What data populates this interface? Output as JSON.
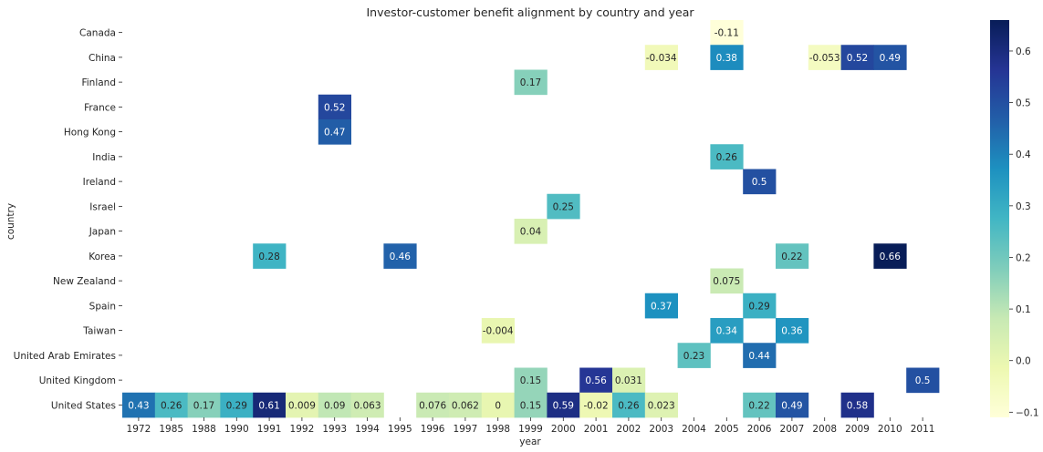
{
  "chart_data": {
    "type": "heatmap",
    "title": "Investor-customer benefit alignment by country and year",
    "xlabel": "year",
    "ylabel": "country",
    "x_categories": [
      "1972",
      "1985",
      "1988",
      "1990",
      "1991",
      "1992",
      "1993",
      "1994",
      "1995",
      "1996",
      "1997",
      "1998",
      "1999",
      "2000",
      "2001",
      "2002",
      "2003",
      "2004",
      "2005",
      "2006",
      "2007",
      "2008",
      "2009",
      "2010",
      "2011"
    ],
    "y_categories": [
      "Canada",
      "China",
      "Finland",
      "France",
      "Hong Kong",
      "India",
      "Ireland",
      "Israel",
      "Japan",
      "Korea",
      "New Zealand",
      "Spain",
      "Taiwan",
      "United Arab Emirates",
      "United Kingdom",
      "United States"
    ],
    "cells": [
      {
        "country": "Canada",
        "year": "2005",
        "value": -0.11,
        "label": "-0.11"
      },
      {
        "country": "China",
        "year": "2003",
        "value": -0.034,
        "label": "-0.034"
      },
      {
        "country": "China",
        "year": "2005",
        "value": 0.38,
        "label": "0.38"
      },
      {
        "country": "China",
        "year": "2008",
        "value": -0.053,
        "label": "-0.053"
      },
      {
        "country": "China",
        "year": "2009",
        "value": 0.52,
        "label": "0.52"
      },
      {
        "country": "China",
        "year": "2010",
        "value": 0.49,
        "label": "0.49"
      },
      {
        "country": "Finland",
        "year": "1999",
        "value": 0.17,
        "label": "0.17"
      },
      {
        "country": "France",
        "year": "1993",
        "value": 0.52,
        "label": "0.52"
      },
      {
        "country": "Hong Kong",
        "year": "1993",
        "value": 0.47,
        "label": "0.47"
      },
      {
        "country": "India",
        "year": "2005",
        "value": 0.26,
        "label": "0.26"
      },
      {
        "country": "Ireland",
        "year": "2006",
        "value": 0.5,
        "label": "0.5"
      },
      {
        "country": "Israel",
        "year": "2000",
        "value": 0.25,
        "label": "0.25"
      },
      {
        "country": "Japan",
        "year": "1999",
        "value": 0.04,
        "label": "0.04"
      },
      {
        "country": "Korea",
        "year": "1991",
        "value": 0.28,
        "label": "0.28"
      },
      {
        "country": "Korea",
        "year": "1995",
        "value": 0.46,
        "label": "0.46"
      },
      {
        "country": "Korea",
        "year": "2007",
        "value": 0.22,
        "label": "0.22"
      },
      {
        "country": "Korea",
        "year": "2010",
        "value": 0.66,
        "label": "0.66"
      },
      {
        "country": "New Zealand",
        "year": "2005",
        "value": 0.075,
        "label": "0.075"
      },
      {
        "country": "Spain",
        "year": "2003",
        "value": 0.37,
        "label": "0.37"
      },
      {
        "country": "Spain",
        "year": "2006",
        "value": 0.29,
        "label": "0.29"
      },
      {
        "country": "Taiwan",
        "year": "1998",
        "value": -0.004,
        "label": "-0.004"
      },
      {
        "country": "Taiwan",
        "year": "2005",
        "value": 0.34,
        "label": "0.34"
      },
      {
        "country": "Taiwan",
        "year": "2007",
        "value": 0.36,
        "label": "0.36"
      },
      {
        "country": "United Arab Emirates",
        "year": "2004",
        "value": 0.23,
        "label": "0.23"
      },
      {
        "country": "United Arab Emirates",
        "year": "2006",
        "value": 0.44,
        "label": "0.44"
      },
      {
        "country": "United Kingdom",
        "year": "1999",
        "value": 0.15,
        "label": "0.15"
      },
      {
        "country": "United Kingdom",
        "year": "2001",
        "value": 0.56,
        "label": "0.56"
      },
      {
        "country": "United Kingdom",
        "year": "2002",
        "value": 0.031,
        "label": "0.031"
      },
      {
        "country": "United Kingdom",
        "year": "2011",
        "value": 0.5,
        "label": "0.5"
      },
      {
        "country": "United States",
        "year": "1972",
        "value": 0.43,
        "label": "0.43"
      },
      {
        "country": "United States",
        "year": "1985",
        "value": 0.26,
        "label": "0.26"
      },
      {
        "country": "United States",
        "year": "1988",
        "value": 0.17,
        "label": "0.17"
      },
      {
        "country": "United States",
        "year": "1990",
        "value": 0.29,
        "label": "0.29"
      },
      {
        "country": "United States",
        "year": "1991",
        "value": 0.61,
        "label": "0.61"
      },
      {
        "country": "United States",
        "year": "1992",
        "value": 0.009,
        "label": "0.009"
      },
      {
        "country": "United States",
        "year": "1993",
        "value": 0.09,
        "label": "0.09"
      },
      {
        "country": "United States",
        "year": "1994",
        "value": 0.063,
        "label": "0.063"
      },
      {
        "country": "United States",
        "year": "1996",
        "value": 0.076,
        "label": "0.076"
      },
      {
        "country": "United States",
        "year": "1997",
        "value": 0.062,
        "label": "0.062"
      },
      {
        "country": "United States",
        "year": "1998",
        "value": 0,
        "label": "0"
      },
      {
        "country": "United States",
        "year": "1999",
        "value": 0.15,
        "label": "0.15"
      },
      {
        "country": "United States",
        "year": "2000",
        "value": 0.59,
        "label": "0.59"
      },
      {
        "country": "United States",
        "year": "2001",
        "value": -0.02,
        "label": "-0.02"
      },
      {
        "country": "United States",
        "year": "2002",
        "value": 0.26,
        "label": "0.26"
      },
      {
        "country": "United States",
        "year": "2003",
        "value": 0.023,
        "label": "0.023"
      },
      {
        "country": "United States",
        "year": "2006",
        "value": 0.22,
        "label": "0.22"
      },
      {
        "country": "United States",
        "year": "2007",
        "value": 0.49,
        "label": "0.49"
      },
      {
        "country": "United States",
        "year": "2009",
        "value": 0.58,
        "label": "0.58"
      }
    ],
    "colormap": "YlGnBu",
    "colorbar": {
      "vmin": -0.11,
      "vmax": 0.66,
      "ticks": [
        -0.1,
        0,
        0.1,
        0.2,
        0.3,
        0.4,
        0.5,
        0.6
      ],
      "tick_labels": [
        "−0.1",
        "0.0",
        "0.1",
        "0.2",
        "0.3",
        "0.4",
        "0.5",
        "0.6"
      ]
    },
    "colorscale": [
      "#ffffd9",
      "#edf8b1",
      "#c7e9b4",
      "#7fcdbb",
      "#41b6c4",
      "#1d91c0",
      "#225ea8",
      "#253494",
      "#081d58"
    ],
    "grid": false,
    "legend": "colorbar-right"
  }
}
